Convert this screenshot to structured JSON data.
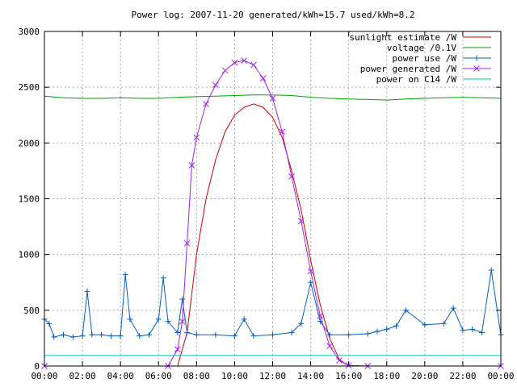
{
  "chart_data": {
    "type": "line",
    "title": "Power log: 2007-11-20 generated/kWh=15.7 used/kWh=8.2",
    "xlabel": "",
    "ylabel": "",
    "xlim": [
      0,
      24
    ],
    "ylim": [
      0,
      3000
    ],
    "grid": true,
    "legend_position": "top-right",
    "x_ticks": [
      "00:00",
      "02:00",
      "04:00",
      "06:00",
      "08:00",
      "10:00",
      "12:00",
      "14:00",
      "16:00",
      "18:00",
      "20:00",
      "22:00",
      "00:00"
    ],
    "y_ticks": [
      0,
      500,
      1000,
      1500,
      2000,
      2500,
      3000
    ],
    "series": [
      {
        "name": "sunlight estimate /W",
        "color": "#d00000",
        "marker": "none",
        "x": [
          7.0,
          7.5,
          8.0,
          8.5,
          9.0,
          9.5,
          10.0,
          10.5,
          11.0,
          11.5,
          12.0,
          12.5,
          13.0,
          13.5,
          14.0,
          14.5,
          15.0,
          15.5,
          16.0
        ],
        "y": [
          0,
          300,
          1000,
          1500,
          1850,
          2100,
          2250,
          2320,
          2350,
          2320,
          2230,
          2050,
          1750,
          1400,
          950,
          550,
          250,
          60,
          0
        ]
      },
      {
        "name": "voltage /0.1V",
        "color": "#00a000",
        "marker": "none",
        "x": [
          0,
          1,
          2,
          3,
          4,
          5,
          6,
          7,
          8,
          9,
          10,
          11,
          12,
          13,
          14,
          15,
          16,
          17,
          18,
          19,
          20,
          21,
          22,
          23,
          24
        ],
        "y": [
          2420,
          2405,
          2400,
          2400,
          2405,
          2400,
          2400,
          2410,
          2415,
          2420,
          2425,
          2430,
          2430,
          2425,
          2410,
          2400,
          2395,
          2390,
          2385,
          2395,
          2400,
          2405,
          2410,
          2405,
          2400
        ]
      },
      {
        "name": "power use /W",
        "color": "#0060c0",
        "marker": "+",
        "x": [
          0,
          0.25,
          0.5,
          1,
          1.5,
          2,
          2.25,
          2.5,
          3,
          3.5,
          4,
          4.25,
          4.5,
          5,
          5.5,
          6,
          6.25,
          6.5,
          7,
          7.25,
          7.5,
          8,
          9,
          10,
          10.5,
          11,
          12,
          13,
          13.5,
          14,
          14.5,
          15,
          16,
          17,
          17.5,
          18,
          18.5,
          19,
          20,
          21,
          21.5,
          22,
          22.5,
          23,
          23.5,
          24
        ],
        "y": [
          420,
          380,
          260,
          280,
          260,
          270,
          670,
          280,
          280,
          270,
          270,
          820,
          420,
          270,
          280,
          420,
          790,
          400,
          300,
          600,
          300,
          280,
          280,
          270,
          420,
          270,
          280,
          300,
          380,
          750,
          400,
          280,
          280,
          290,
          310,
          330,
          360,
          500,
          370,
          380,
          520,
          320,
          330,
          300,
          860,
          280
        ]
      },
      {
        "name": "power generated /W",
        "color": "#a020f0",
        "marker": "x",
        "x": [
          0,
          6.5,
          7.0,
          7.25,
          7.5,
          7.75,
          8.0,
          8.5,
          9.0,
          9.5,
          10.0,
          10.5,
          11.0,
          11.5,
          12.0,
          12.5,
          13.0,
          13.5,
          14.0,
          14.5,
          15.0,
          15.5,
          16.0,
          17.0,
          24
        ],
        "y": [
          0,
          0,
          150,
          400,
          1100,
          1800,
          2050,
          2350,
          2520,
          2650,
          2720,
          2740,
          2700,
          2580,
          2400,
          2100,
          1700,
          1300,
          850,
          450,
          180,
          50,
          5,
          0,
          0
        ]
      },
      {
        "name": "power on C14 /W",
        "color": "#00c0c0",
        "marker": "none",
        "x": [
          0,
          24
        ],
        "y": [
          95,
          95
        ]
      }
    ]
  }
}
